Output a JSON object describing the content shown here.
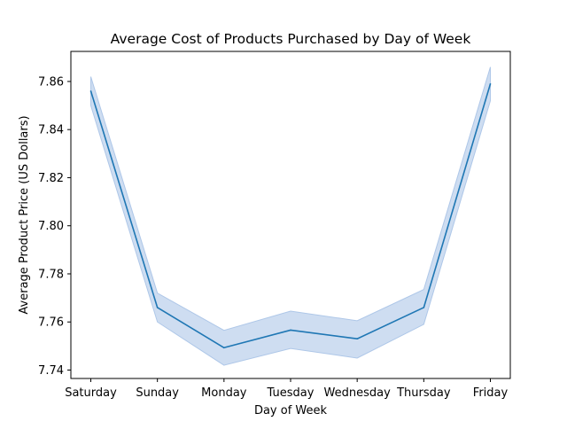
{
  "chart_data": {
    "type": "line",
    "title": "Average Cost of Products Purchased by Day of Week",
    "xlabel": "Day of Week",
    "ylabel": "Average Product Price (US Dollars)",
    "categories": [
      "Saturday",
      "Sunday",
      "Monday",
      "Tuesday",
      "Wednesday",
      "Thursday",
      "Friday"
    ],
    "series": [
      {
        "values": [
          7.856,
          7.766,
          7.7493,
          7.7566,
          7.753,
          7.766,
          7.859
        ],
        "ci_lower": [
          7.85,
          7.76,
          7.742,
          7.749,
          7.745,
          7.759,
          7.852
        ],
        "ci_upper": [
          7.862,
          7.772,
          7.7565,
          7.7645,
          7.7605,
          7.7735,
          7.866
        ],
        "color": "#1f77b4",
        "band_color": "#aec7e8"
      }
    ],
    "yticks": [
      "7.74",
      "7.76",
      "7.78",
      "7.80",
      "7.82",
      "7.84",
      "7.86"
    ],
    "ytick_values": [
      7.74,
      7.76,
      7.78,
      7.8,
      7.82,
      7.84,
      7.86
    ],
    "ylim": [
      7.7365,
      7.8725
    ],
    "grid": false,
    "legend": "none"
  }
}
